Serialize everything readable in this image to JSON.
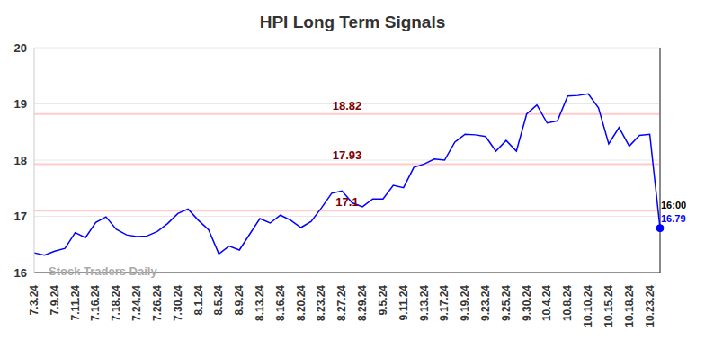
{
  "chart_data": {
    "type": "line",
    "title": "HPI Long Term Signals",
    "watermark": "Stock Traders Daily",
    "categories": [
      "7.3.24",
      null,
      "7.9.24",
      null,
      "7.11.24",
      null,
      "7.16.24",
      null,
      "7.18.24",
      null,
      "7.24.24",
      null,
      "7.26.24",
      null,
      "7.30.24",
      null,
      "8.1.24",
      null,
      "8.5.24",
      null,
      "8.9.24",
      null,
      "8.13.24",
      null,
      "8.16.24",
      null,
      "8.20.24",
      null,
      "8.23.24",
      null,
      "8.27.24",
      null,
      "8.29.24",
      null,
      "9.5.24",
      null,
      "9.11.24",
      null,
      "9.13.24",
      null,
      "9.17.24",
      null,
      "9.19.24",
      null,
      "9.23.24",
      null,
      "9.25.24",
      null,
      "9.30.24",
      null,
      "10.4.24",
      null,
      "10.8.24",
      null,
      "10.10.24",
      null,
      "10.15.24",
      null,
      "10.18.24",
      null,
      "10.23.24",
      null
    ],
    "values": [
      16.35,
      16.31,
      16.38,
      16.43,
      16.71,
      16.62,
      16.89,
      16.99,
      16.77,
      16.67,
      16.64,
      16.65,
      16.73,
      16.87,
      17.05,
      17.13,
      16.93,
      16.76,
      16.33,
      16.47,
      16.4,
      16.68,
      16.96,
      16.88,
      17.02,
      16.93,
      16.8,
      16.91,
      17.15,
      17.41,
      17.45,
      17.24,
      17.17,
      17.31,
      17.31,
      17.55,
      17.51,
      17.87,
      17.93,
      18.02,
      18.0,
      18.32,
      18.46,
      18.45,
      18.42,
      18.16,
      18.35,
      18.16,
      18.82,
      18.98,
      18.66,
      18.7,
      19.14,
      19.15,
      19.18,
      18.93,
      18.29,
      18.58,
      18.25,
      18.44,
      18.46,
      16.79
    ],
    "color": "#0000ff",
    "ylim": [
      16,
      20
    ],
    "yticks": [
      16,
      17,
      18,
      19,
      20
    ],
    "grid": true,
    "reference_lines": [
      {
        "value": 18.82,
        "label": "18.82"
      },
      {
        "value": 17.93,
        "label": "17.93"
      },
      {
        "value": 17.1,
        "label": "17.1"
      }
    ],
    "last_point": {
      "time": "16:00",
      "label": "16.79"
    }
  }
}
